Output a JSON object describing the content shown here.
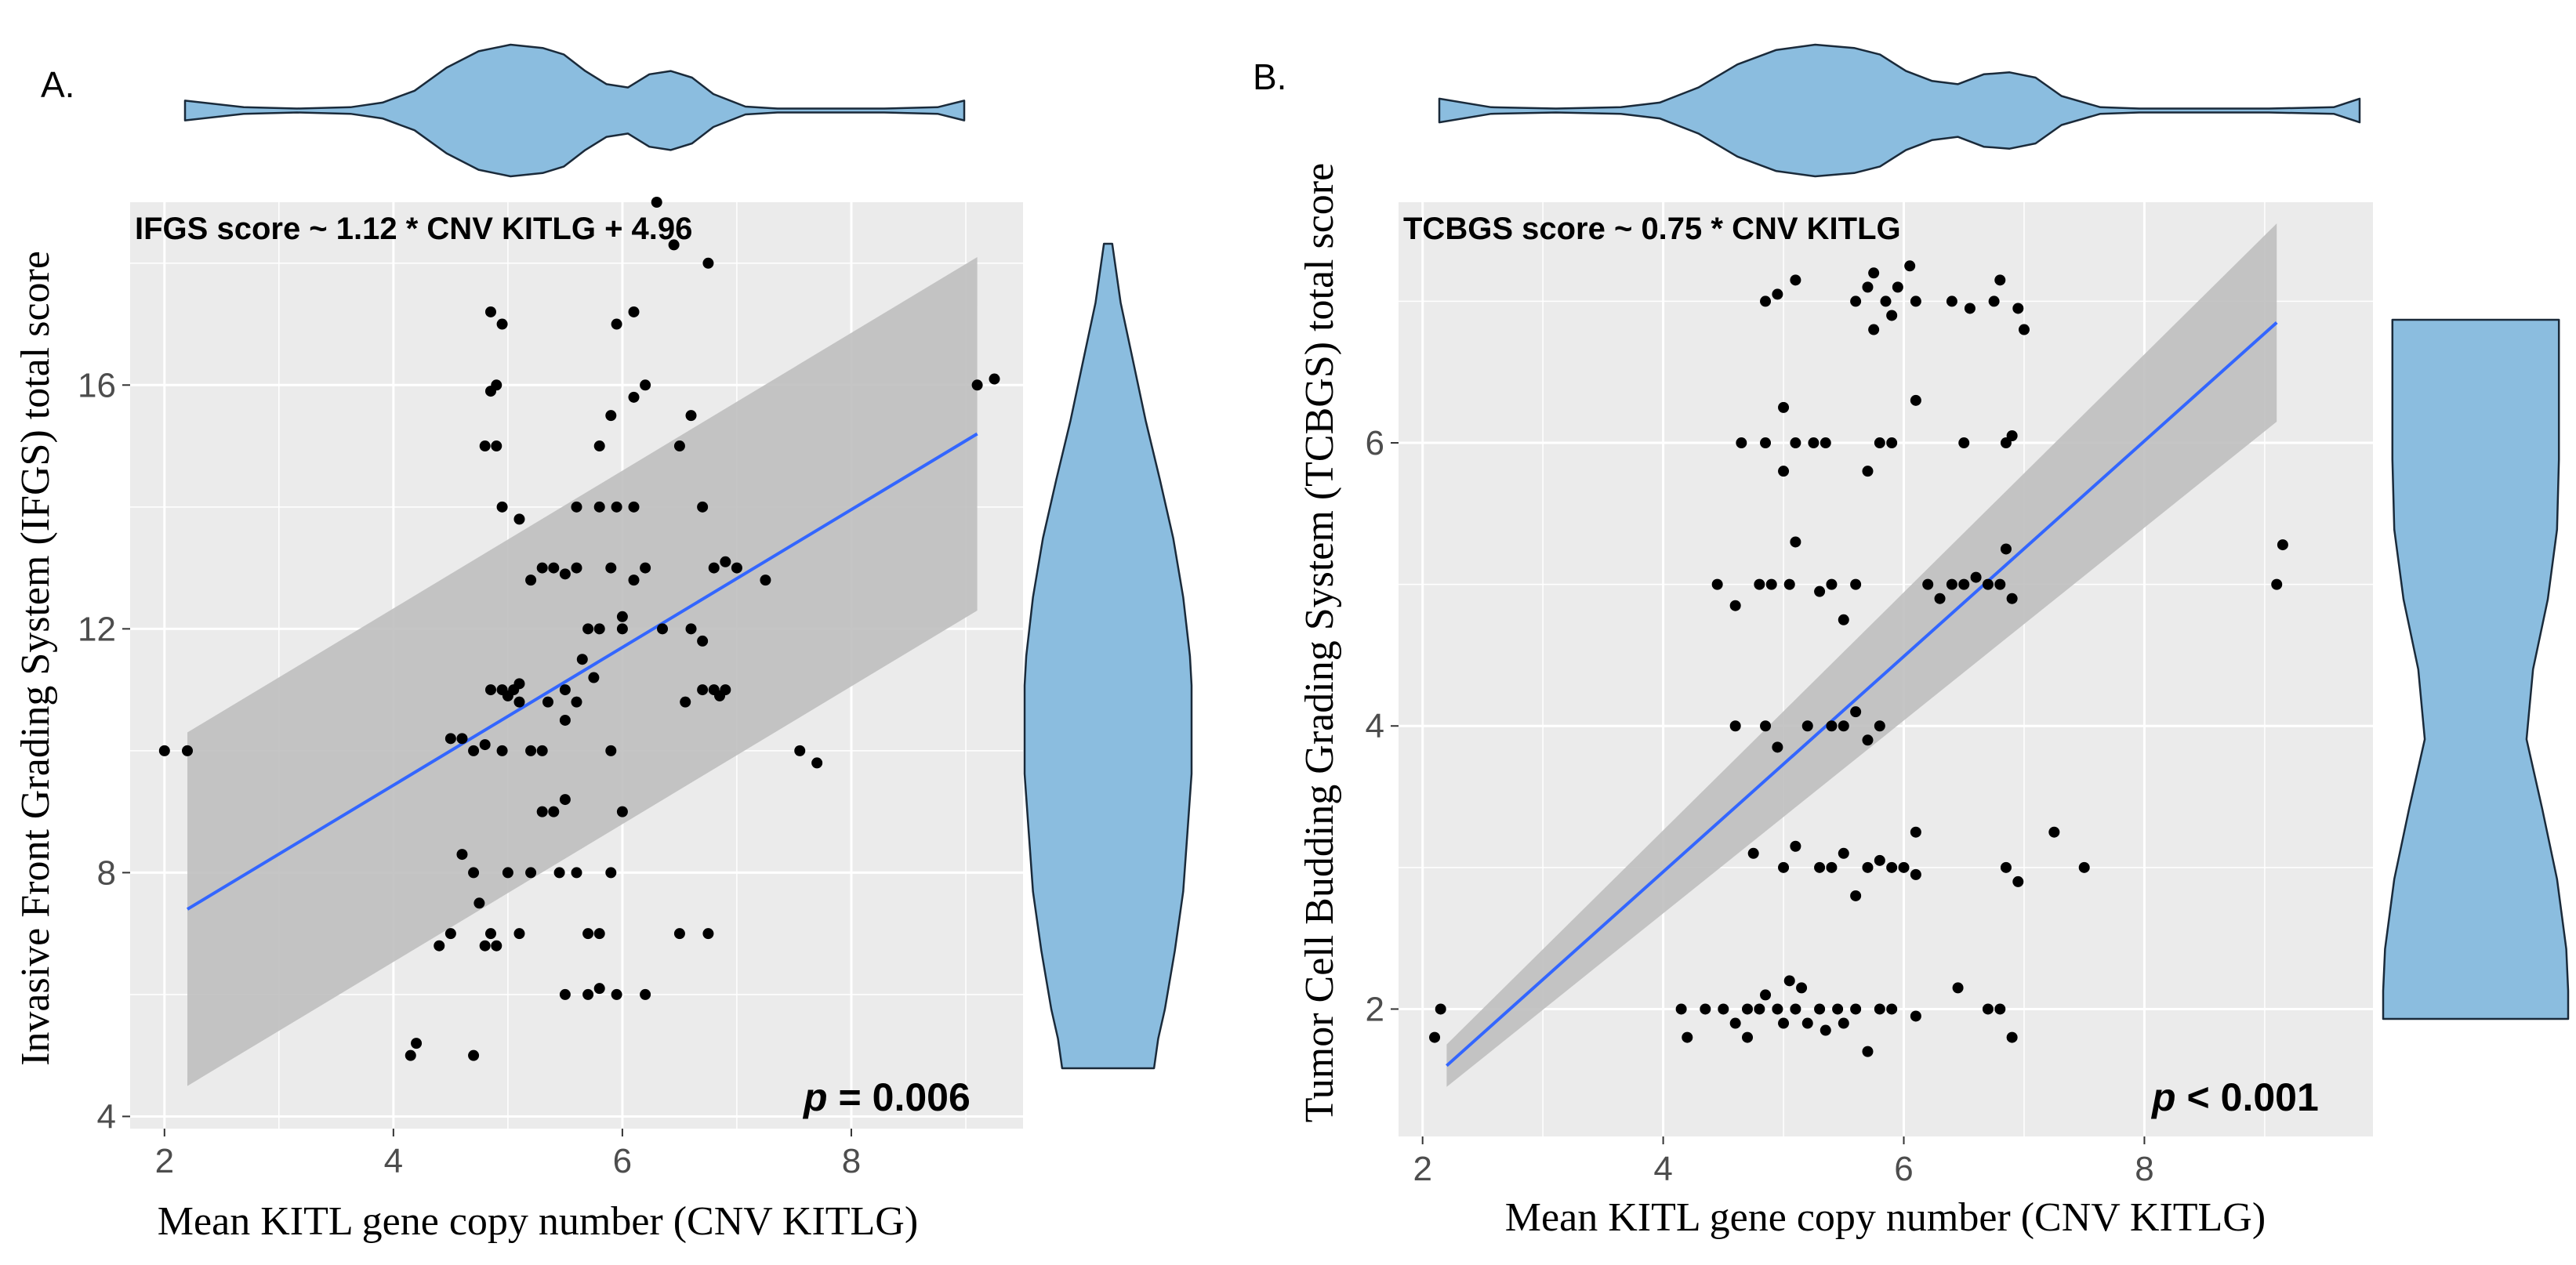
{
  "figure": {
    "panels": [
      "A.",
      "B."
    ]
  },
  "colors": {
    "panel_bg": "#ebebeb",
    "grid": "#ffffff",
    "point": "#000000",
    "fit_line": "#3366ff",
    "ci_band": "#bfbfbf",
    "violin_fill": "#8bbddf",
    "violin_stroke": "#1a2a3a"
  },
  "chart_data": [
    {
      "panel": "A.",
      "type": "scatter",
      "equation": "IFGS score ~ 1.12 * CNV KITLG + 4.96",
      "p_label": "p",
      "p_value": "= 0.006",
      "xlabel": "Mean KITL gene copy number (CNV KITLG)",
      "ylabel": "Invasive Front Grading System (IFGS) total score",
      "xlim": [
        1.7,
        9.5
      ],
      "ylim": [
        3.8,
        19.0
      ],
      "xticks": [
        2,
        4,
        6,
        8
      ],
      "yticks": [
        4,
        8,
        12,
        16
      ],
      "fit": {
        "x": [
          2.2,
          9.1
        ],
        "y": [
          7.4,
          15.2
        ],
        "ci_lower": [
          4.5,
          12.3
        ],
        "ci_upper": [
          10.3,
          18.1
        ]
      },
      "points": [
        [
          2.0,
          10.0
        ],
        [
          2.2,
          10.0
        ],
        [
          4.15,
          5.0
        ],
        [
          4.2,
          5.2
        ],
        [
          4.4,
          6.8
        ],
        [
          4.5,
          7.0
        ],
        [
          4.6,
          8.3
        ],
        [
          4.7,
          8.0
        ],
        [
          4.7,
          5.0
        ],
        [
          4.75,
          7.5
        ],
        [
          4.8,
          6.8
        ],
        [
          4.85,
          7.0
        ],
        [
          4.9,
          6.8
        ],
        [
          4.5,
          10.2
        ],
        [
          4.6,
          10.2
        ],
        [
          4.7,
          10.0
        ],
        [
          4.8,
          10.1
        ],
        [
          4.85,
          11.0
        ],
        [
          4.95,
          11.0
        ],
        [
          5.0,
          10.9
        ],
        [
          5.05,
          11.0
        ],
        [
          5.1,
          10.8
        ],
        [
          5.0,
          8.0
        ],
        [
          5.2,
          8.0
        ],
        [
          5.1,
          7.0
        ],
        [
          5.2,
          10.0
        ],
        [
          5.3,
          9.0
        ],
        [
          5.4,
          9.0
        ],
        [
          5.45,
          8.0
        ],
        [
          5.5,
          9.2
        ],
        [
          5.6,
          8.0
        ],
        [
          5.7,
          7.0
        ],
        [
          5.8,
          7.0
        ],
        [
          5.9,
          8.0
        ],
        [
          5.5,
          6.0
        ],
        [
          5.7,
          6.0
        ],
        [
          5.8,
          6.1
        ],
        [
          5.95,
          6.0
        ],
        [
          6.2,
          6.0
        ],
        [
          5.3,
          10.0
        ],
        [
          5.5,
          11.0
        ],
        [
          5.6,
          10.8
        ],
        [
          5.75,
          11.2
        ],
        [
          5.9,
          10.0
        ],
        [
          6.0,
          9.0
        ],
        [
          5.2,
          12.8
        ],
        [
          5.3,
          13.0
        ],
        [
          5.4,
          13.0
        ],
        [
          5.5,
          12.9
        ],
        [
          5.6,
          13.0
        ],
        [
          5.7,
          12.0
        ],
        [
          5.8,
          12.0
        ],
        [
          5.9,
          13.0
        ],
        [
          6.0,
          12.0
        ],
        [
          6.1,
          12.8
        ],
        [
          6.2,
          13.0
        ],
        [
          5.6,
          14.0
        ],
        [
          5.8,
          14.0
        ],
        [
          5.95,
          14.0
        ],
        [
          6.1,
          14.0
        ],
        [
          5.8,
          15.0
        ],
        [
          5.9,
          15.5
        ],
        [
          6.1,
          15.8
        ],
        [
          6.2,
          16.0
        ],
        [
          5.95,
          17.0
        ],
        [
          6.1,
          17.2
        ],
        [
          4.9,
          16.0
        ],
        [
          4.85,
          15.9
        ],
        [
          4.9,
          15.0
        ],
        [
          4.8,
          15.0
        ],
        [
          4.85,
          17.2
        ],
        [
          4.95,
          17.0
        ],
        [
          4.95,
          14.0
        ],
        [
          5.1,
          13.8
        ],
        [
          6.3,
          19.0
        ],
        [
          6.45,
          18.3
        ],
        [
          6.75,
          18.0
        ],
        [
          6.5,
          15.0
        ],
        [
          6.6,
          15.5
        ],
        [
          6.7,
          14.0
        ],
        [
          6.8,
          13.0
        ],
        [
          6.9,
          13.1
        ],
        [
          7.0,
          13.0
        ],
        [
          7.25,
          12.8
        ],
        [
          6.6,
          12.0
        ],
        [
          6.7,
          11.8
        ],
        [
          6.7,
          11.0
        ],
        [
          6.8,
          11.0
        ],
        [
          6.85,
          10.9
        ],
        [
          6.9,
          11.0
        ],
        [
          6.55,
          10.8
        ],
        [
          6.5,
          7.0
        ],
        [
          6.75,
          7.0
        ],
        [
          7.55,
          10.0
        ],
        [
          7.7,
          9.8
        ],
        [
          9.1,
          16.0
        ],
        [
          9.25,
          16.1
        ],
        [
          5.5,
          10.5
        ],
        [
          5.65,
          11.5
        ],
        [
          6.35,
          12.0
        ],
        [
          6.0,
          12.2
        ],
        [
          5.35,
          10.8
        ],
        [
          5.1,
          11.1
        ],
        [
          4.95,
          10.0
        ]
      ]
    },
    {
      "panel": "B.",
      "type": "scatter",
      "equation": "TCBGS score ~ 0.75 * CNV KITLG",
      "p_label": "p",
      "p_value": "< 0.001",
      "xlabel": "Mean KITL gene copy number (CNV KITLG)",
      "ylabel": "Tumor Cell Budding Grading System (TCBGS) total score",
      "xlim": [
        1.8,
        9.9
      ],
      "ylim": [
        1.1,
        7.7
      ],
      "xticks": [
        2,
        4,
        6,
        8
      ],
      "yticks": [
        2,
        4,
        6
      ],
      "fit": {
        "x": [
          2.2,
          9.1
        ],
        "y": [
          1.6,
          6.85
        ],
        "ci_lower": [
          1.45,
          6.15
        ],
        "ci_upper": [
          1.75,
          7.55
        ]
      },
      "points": [
        [
          2.15,
          2.0
        ],
        [
          2.1,
          1.8
        ],
        [
          4.15,
          2.0
        ],
        [
          4.2,
          1.8
        ],
        [
          4.35,
          2.0
        ],
        [
          4.5,
          2.0
        ],
        [
          4.6,
          1.9
        ],
        [
          4.7,
          2.0
        ],
        [
          4.7,
          1.8
        ],
        [
          4.8,
          2.0
        ],
        [
          4.85,
          2.1
        ],
        [
          4.95,
          2.0
        ],
        [
          5.0,
          1.9
        ],
        [
          5.05,
          2.2
        ],
        [
          5.1,
          2.0
        ],
        [
          5.15,
          2.15
        ],
        [
          5.2,
          1.9
        ],
        [
          5.3,
          2.0
        ],
        [
          5.35,
          1.85
        ],
        [
          5.45,
          2.0
        ],
        [
          5.5,
          1.9
        ],
        [
          5.6,
          2.0
        ],
        [
          5.7,
          1.7
        ],
        [
          5.8,
          2.0
        ],
        [
          5.9,
          2.0
        ],
        [
          6.1,
          1.95
        ],
        [
          6.45,
          2.15
        ],
        [
          6.7,
          2.0
        ],
        [
          6.8,
          2.0
        ],
        [
          6.9,
          1.8
        ],
        [
          4.75,
          3.1
        ],
        [
          5.0,
          3.0
        ],
        [
          5.1,
          3.15
        ],
        [
          5.3,
          3.0
        ],
        [
          5.4,
          3.0
        ],
        [
          5.5,
          3.1
        ],
        [
          5.6,
          2.8
        ],
        [
          5.7,
          3.0
        ],
        [
          5.8,
          3.05
        ],
        [
          5.9,
          3.0
        ],
        [
          6.0,
          3.0
        ],
        [
          6.1,
          2.95
        ],
        [
          6.1,
          3.25
        ],
        [
          6.85,
          3.0
        ],
        [
          6.95,
          2.9
        ],
        [
          7.25,
          3.25
        ],
        [
          7.5,
          3.0
        ],
        [
          4.6,
          4.0
        ],
        [
          4.85,
          4.0
        ],
        [
          4.95,
          3.85
        ],
        [
          5.2,
          4.0
        ],
        [
          5.4,
          4.0
        ],
        [
          5.5,
          4.0
        ],
        [
          5.6,
          4.1
        ],
        [
          5.7,
          3.9
        ],
        [
          5.8,
          4.0
        ],
        [
          4.45,
          5.0
        ],
        [
          4.6,
          4.85
        ],
        [
          4.8,
          5.0
        ],
        [
          4.9,
          5.0
        ],
        [
          5.05,
          5.0
        ],
        [
          5.1,
          5.3
        ],
        [
          5.3,
          4.95
        ],
        [
          5.4,
          5.0
        ],
        [
          5.5,
          4.75
        ],
        [
          5.6,
          5.0
        ],
        [
          6.2,
          5.0
        ],
        [
          6.3,
          4.9
        ],
        [
          6.4,
          5.0
        ],
        [
          6.5,
          5.0
        ],
        [
          6.6,
          5.05
        ],
        [
          6.7,
          5.0
        ],
        [
          6.8,
          5.0
        ],
        [
          6.85,
          5.25
        ],
        [
          6.9,
          4.9
        ],
        [
          9.1,
          5.0
        ],
        [
          9.15,
          5.28
        ],
        [
          4.65,
          6.0
        ],
        [
          4.85,
          6.0
        ],
        [
          5.0,
          6.25
        ],
        [
          5.1,
          6.0
        ],
        [
          5.25,
          6.0
        ],
        [
          5.35,
          6.0
        ],
        [
          5.0,
          5.8
        ],
        [
          5.7,
          5.8
        ],
        [
          5.8,
          6.0
        ],
        [
          5.9,
          6.0
        ],
        [
          6.1,
          6.3
        ],
        [
          6.5,
          6.0
        ],
        [
          6.85,
          6.0
        ],
        [
          6.9,
          6.05
        ],
        [
          4.85,
          7.0
        ],
        [
          4.95,
          7.05
        ],
        [
          5.1,
          7.15
        ],
        [
          5.6,
          7.0
        ],
        [
          5.7,
          7.1
        ],
        [
          5.75,
          7.2
        ],
        [
          5.85,
          7.0
        ],
        [
          5.95,
          7.1
        ],
        [
          6.05,
          7.25
        ],
        [
          6.1,
          7.0
        ],
        [
          6.4,
          7.0
        ],
        [
          6.55,
          6.95
        ],
        [
          6.75,
          7.0
        ],
        [
          6.8,
          7.15
        ],
        [
          6.95,
          6.95
        ],
        [
          7.0,
          6.8
        ],
        [
          5.75,
          6.8
        ],
        [
          5.9,
          6.9
        ]
      ]
    }
  ],
  "violins": {
    "A_top": {
      "axis": "x",
      "positions": [
        1.95,
        2.5,
        3.0,
        3.5,
        3.8,
        4.1,
        4.4,
        4.7,
        5.0,
        5.3,
        5.5,
        5.7,
        5.9,
        6.1,
        6.3,
        6.5,
        6.7,
        6.9,
        7.2,
        7.5,
        8.0,
        8.5,
        9.0,
        9.25
      ],
      "widths": [
        0.15,
        0.05,
        0.03,
        0.05,
        0.12,
        0.3,
        0.65,
        0.9,
        1.0,
        0.95,
        0.85,
        0.6,
        0.4,
        0.35,
        0.55,
        0.6,
        0.5,
        0.25,
        0.06,
        0.03,
        0.03,
        0.03,
        0.05,
        0.15
      ]
    },
    "A_right": {
      "axis": "y",
      "positions": [
        5.0,
        5.5,
        6.0,
        7.0,
        8.0,
        9.0,
        10.0,
        10.5,
        11.0,
        11.5,
        12.0,
        13.0,
        14.0,
        15.0,
        16.0,
        17.0,
        18.0,
        19.0
      ],
      "widths": [
        0.55,
        0.6,
        0.68,
        0.8,
        0.9,
        0.95,
        1.0,
        1.0,
        1.0,
        1.0,
        0.98,
        0.9,
        0.78,
        0.62,
        0.45,
        0.3,
        0.15,
        0.05
      ]
    },
    "B_top": {
      "axis": "x",
      "positions": [
        2.1,
        2.5,
        3.0,
        3.5,
        3.8,
        4.1,
        4.4,
        4.7,
        5.0,
        5.3,
        5.5,
        5.7,
        5.9,
        6.1,
        6.3,
        6.5,
        6.7,
        6.9,
        7.2,
        7.5,
        8.0,
        8.5,
        9.0,
        9.2
      ],
      "widths": [
        0.18,
        0.05,
        0.03,
        0.05,
        0.12,
        0.35,
        0.7,
        0.92,
        1.0,
        0.95,
        0.85,
        0.6,
        0.45,
        0.4,
        0.55,
        0.58,
        0.5,
        0.22,
        0.05,
        0.03,
        0.03,
        0.03,
        0.05,
        0.18
      ]
    },
    "B_right": {
      "axis": "y",
      "positions": [
        2.0,
        2.2,
        2.5,
        3.0,
        3.5,
        4.0,
        4.5,
        5.0,
        5.5,
        6.0,
        6.5,
        7.0
      ],
      "widths": [
        1.0,
        1.0,
        0.98,
        0.88,
        0.72,
        0.55,
        0.62,
        0.78,
        0.88,
        0.9,
        0.9,
        0.9
      ]
    }
  }
}
